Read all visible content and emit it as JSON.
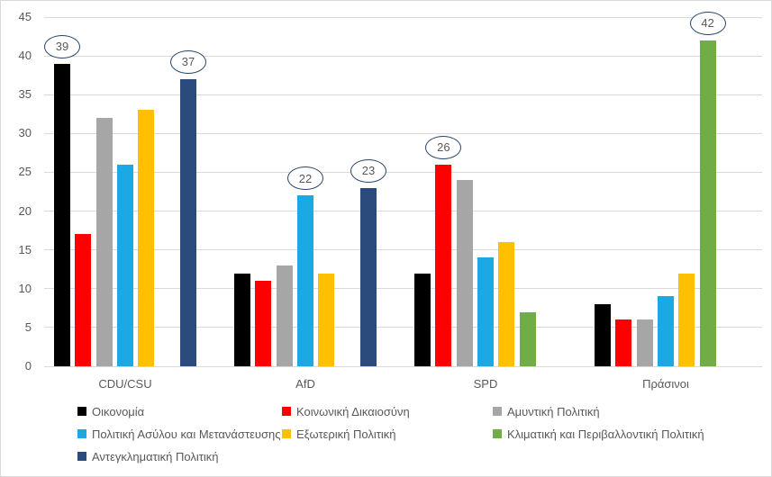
{
  "chart_data": {
    "type": "bar",
    "title": "",
    "xlabel": "",
    "ylabel": "",
    "categories": [
      "CDU/CSU",
      "AfD",
      "SPD",
      "Πράσινοι"
    ],
    "series": [
      {
        "name": "Οικονομία",
        "color": "#000000",
        "values": [
          39,
          12,
          12,
          8
        ]
      },
      {
        "name": "Κοινωνική Δικαιοσύνη",
        "color": "#FF0000",
        "values": [
          17,
          11,
          26,
          6
        ]
      },
      {
        "name": "Αμυντική Πολιτική",
        "color": "#A6A6A6",
        "values": [
          32,
          13,
          24,
          6
        ]
      },
      {
        "name": "Πολιτική Ασύλου και Μετανάστευσης",
        "color": "#1CA8E3",
        "values": [
          26,
          22,
          14,
          9
        ]
      },
      {
        "name": "Εξωτερική Πολιτική",
        "color": "#FFC000",
        "values": [
          33,
          12,
          16,
          12
        ]
      },
      {
        "name": "Κλιματική και Περιβαλλοντική Πολιτική",
        "color": "#70AD47",
        "values": [
          0,
          0,
          7,
          42
        ]
      },
      {
        "name": "Αντεγκληματική Πολιτική",
        "color": "#2A4B7C",
        "values": [
          37,
          23,
          0,
          0
        ]
      }
    ],
    "ylim": [
      0,
      45
    ],
    "ytick_step": 5,
    "yticks": [
      0,
      5,
      10,
      15,
      20,
      25,
      30,
      35,
      40,
      45
    ],
    "grid": true,
    "legend_position": "bottom",
    "annotations": [
      {
        "category": "CDU/CSU",
        "series": "Οικονομία",
        "label": "39"
      },
      {
        "category": "CDU/CSU",
        "series": "Αντεγκληματική Πολιτική",
        "label": "37"
      },
      {
        "category": "AfD",
        "series": "Πολιτική Ασύλου και Μετανάστευσης",
        "label": "22"
      },
      {
        "category": "AfD",
        "series": "Αντεγκληματική Πολιτική",
        "label": "23"
      },
      {
        "category": "SPD",
        "series": "Κοινωνική Δικαιοσύνη",
        "label": "26"
      },
      {
        "category": "Πράσινοι",
        "series": "Κλιματική και Περιβαλλοντική Πολιτική",
        "label": "42"
      }
    ],
    "colors": {
      "background": "#FFFFFF",
      "frame_border": "#D9D9D9",
      "gridline": "#D9D9D9",
      "axis_text": "#595959",
      "annotation_outline": "#24436B",
      "annotation_text": "#595959"
    }
  }
}
